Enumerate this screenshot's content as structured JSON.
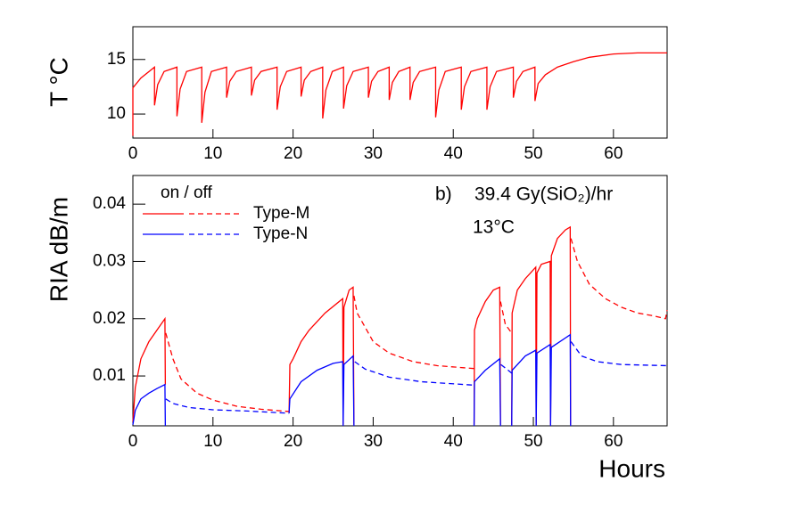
{
  "chart_data": [
    {
      "type": "line",
      "ylabel": "T °C",
      "xlim": [
        0,
        66.7
      ],
      "ylim": [
        7.8,
        18
      ],
      "xticks": [
        0,
        10,
        20,
        30,
        40,
        50,
        60
      ],
      "yticks": [
        10,
        15
      ],
      "series": [
        {
          "color": "#ff0000",
          "x": [
            0,
            0,
            1,
            2.7,
            2.7,
            3.1,
            3.9,
            5.5,
            5.5,
            5.9,
            6.7,
            8.6,
            8.6,
            9.0,
            9.8,
            11.7,
            11.7,
            12.1,
            12.9,
            14.8,
            14.8,
            15.2,
            16.0,
            18.0,
            18.0,
            18.4,
            19.2,
            21.0,
            21.0,
            21.4,
            22.2,
            23.7,
            23.7,
            24.1,
            24.9,
            26.3,
            26.3,
            26.7,
            27.5,
            29.4,
            29.4,
            29.8,
            30.6,
            32.0,
            32.0,
            32.4,
            33.2,
            34.6,
            34.6,
            35.0,
            35.8,
            37.8,
            37.8,
            38.2,
            39.0,
            41.0,
            41.0,
            41.4,
            42.2,
            44.2,
            44.2,
            44.6,
            45.4,
            47.5,
            47.5,
            47.9,
            48.7,
            50.2,
            50.2,
            50.6,
            51.5,
            53,
            55,
            57,
            60,
            63,
            66.7
          ],
          "values": [
            8.0,
            12.4,
            13.3,
            14.3,
            10.8,
            12.7,
            13.9,
            14.3,
            9.8,
            12.3,
            13.9,
            14.3,
            9.2,
            12.0,
            13.9,
            14.3,
            11.5,
            13.0,
            13.9,
            14.3,
            11.7,
            13.1,
            13.9,
            14.3,
            10.4,
            12.5,
            13.9,
            14.3,
            11.6,
            13.1,
            13.9,
            14.3,
            9.6,
            12.2,
            13.9,
            14.3,
            10.5,
            12.6,
            13.9,
            14.3,
            11.5,
            13.0,
            13.9,
            14.3,
            11.3,
            12.9,
            13.9,
            14.3,
            11.3,
            12.9,
            13.9,
            14.3,
            9.7,
            12.2,
            13.9,
            14.3,
            10.4,
            12.5,
            13.9,
            14.3,
            10.4,
            12.5,
            13.9,
            14.3,
            11.5,
            13.0,
            13.9,
            14.3,
            11.2,
            12.8,
            13.6,
            14.3,
            14.8,
            15.2,
            15.5,
            15.6,
            15.6
          ]
        }
      ]
    },
    {
      "type": "line",
      "ylabel": "RIA dB/m",
      "xlabel": "Hours",
      "xlim": [
        0,
        66.7
      ],
      "ylim": [
        0.0013,
        0.045
      ],
      "xticks": [
        0,
        10,
        20,
        30,
        40,
        50,
        60
      ],
      "yticks": [
        0.01,
        0.02,
        0.03,
        0.04
      ],
      "legend_title": "on / off",
      "annotations": [
        "b)",
        "39.4 Gy(SiO₂)/hr",
        "13°C"
      ],
      "series": [
        {
          "name": "Type-M",
          "color": "#ff0000",
          "segments": [
            {
              "dashed": false,
              "x": [
                0,
                0.3,
                1,
                2,
                3,
                4,
                4.05
              ],
              "values": [
                0.002,
                0.008,
                0.013,
                0.016,
                0.018,
                0.02,
                0.0085
              ]
            },
            {
              "dashed": true,
              "x": [
                4.1,
                5,
                6,
                8,
                10,
                13,
                16,
                19.5
              ],
              "values": [
                0.0175,
                0.013,
                0.0095,
                0.007,
                0.0058,
                0.0047,
                0.0042,
                0.0038
              ]
            },
            {
              "dashed": false,
              "x": [
                19.5,
                19.6,
                20,
                21,
                22,
                24,
                26.2,
                26.25,
                26.35,
                27,
                27.5,
                27.6
              ],
              "values": [
                0.0035,
                0.012,
                0.013,
                0.016,
                0.018,
                0.021,
                0.0235,
                0.0015,
                0.022,
                0.025,
                0.0255,
                0.0015
              ]
            },
            {
              "dashed": true,
              "x": [
                27.6,
                28,
                30,
                32,
                35,
                38,
                42.6
              ],
              "values": [
                0.024,
                0.021,
                0.016,
                0.014,
                0.0125,
                0.0118,
                0.0113
              ]
            },
            {
              "dashed": false,
              "x": [
                42.6,
                42.65,
                43,
                44,
                45,
                45.8,
                45.9
              ],
              "values": [
                0.0015,
                0.018,
                0.02,
                0.023,
                0.025,
                0.0255,
                0.0015
              ]
            },
            {
              "dashed": true,
              "x": [
                45.9,
                46.5,
                47.3
              ],
              "values": [
                0.023,
                0.019,
                0.0175
              ]
            },
            {
              "dashed": false,
              "x": [
                47.3,
                47.35,
                48,
                49,
                50.3,
                50.35,
                50.45,
                51,
                52.1,
                52.15,
                52.25,
                53,
                54,
                54.6,
                54.65
              ],
              "values": [
                0.0015,
                0.021,
                0.025,
                0.027,
                0.029,
                0.0015,
                0.028,
                0.0295,
                0.03,
                0.0015,
                0.031,
                0.034,
                0.0355,
                0.036,
                0.0015
              ]
            },
            {
              "dashed": true,
              "x": [
                54.7,
                55.5,
                57,
                59,
                61,
                63,
                65,
                66.5,
                66.7
              ],
              "values": [
                0.034,
                0.03,
                0.026,
                0.0235,
                0.022,
                0.021,
                0.0205,
                0.02,
                0.0215
              ]
            }
          ]
        },
        {
          "name": "Type-N",
          "color": "#0000ff",
          "segments": [
            {
              "dashed": false,
              "x": [
                0,
                0.3,
                1,
                2,
                3,
                4,
                4.05
              ],
              "values": [
                0.0015,
                0.004,
                0.006,
                0.007,
                0.0078,
                0.0085,
                0.0013
              ]
            },
            {
              "dashed": true,
              "x": [
                4.1,
                5,
                7,
                10,
                14,
                19.5
              ],
              "values": [
                0.006,
                0.0052,
                0.0045,
                0.0041,
                0.0039,
                0.0035
              ]
            },
            {
              "dashed": false,
              "x": [
                19.5,
                19.6,
                21,
                23,
                25,
                26.2,
                26.25,
                26.35,
                27.5,
                27.6
              ],
              "values": [
                0.0035,
                0.006,
                0.009,
                0.011,
                0.0122,
                0.0125,
                0.0013,
                0.012,
                0.0135,
                0.0013
              ]
            },
            {
              "dashed": true,
              "x": [
                27.7,
                29,
                32,
                36,
                42.6
              ],
              "values": [
                0.0125,
                0.0112,
                0.0098,
                0.009,
                0.0084
              ]
            },
            {
              "dashed": false,
              "x": [
                42.6,
                42.65,
                44,
                45.8,
                45.9
              ],
              "values": [
                0.0013,
                0.009,
                0.011,
                0.013,
                0.0013
              ]
            },
            {
              "dashed": true,
              "x": [
                45.95,
                47.3
              ],
              "values": [
                0.012,
                0.0105
              ]
            },
            {
              "dashed": false,
              "x": [
                47.3,
                47.35,
                49,
                50.3,
                50.35,
                50.45,
                52.1,
                52.15,
                52.25,
                54.6,
                54.65
              ],
              "values": [
                0.0013,
                0.011,
                0.0135,
                0.0145,
                0.0013,
                0.014,
                0.0155,
                0.0013,
                0.015,
                0.0172,
                0.0013
              ]
            },
            {
              "dashed": true,
              "x": [
                54.7,
                56,
                58,
                61,
                66.7
              ],
              "values": [
                0.016,
                0.0135,
                0.0125,
                0.012,
                0.0118
              ]
            }
          ]
        }
      ]
    }
  ]
}
